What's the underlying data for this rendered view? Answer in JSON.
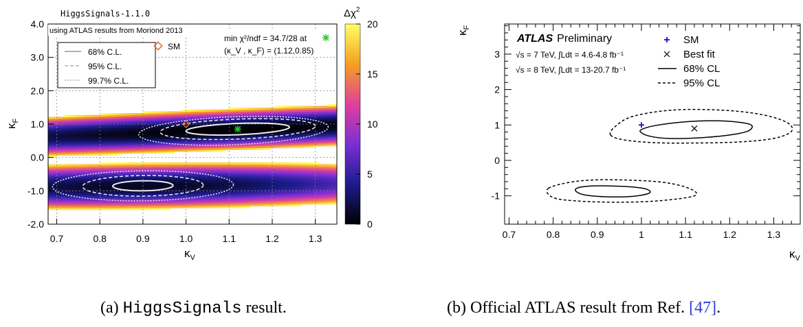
{
  "figure": {
    "caption_a": {
      "label": "(a)",
      "code": "HiggsSignals",
      "rest": "result."
    },
    "caption_b": {
      "prefix": "(b) Official ATLAS result from Ref.",
      "ref": "[47]",
      "suffix": "."
    }
  },
  "chart_data": [
    {
      "id": "a",
      "type": "heatmap",
      "tag": "HiggsSignals-1.1.0",
      "note": "using ATLAS results from Moriond 2013",
      "fit_text_1": "min χ²/ndf =  34.7/28 at",
      "fit_text_2": "(κ_V , κ_F) = (1.12,0.85)",
      "xlabel": "κ_V",
      "ylabel": "κ_F",
      "zlabel": "Δχ²",
      "xlim": [
        0.68,
        1.35
      ],
      "ylim": [
        -2.0,
        4.0
      ],
      "zlim": [
        0,
        20
      ],
      "xticks": [
        "0.7",
        "0.8",
        "0.9",
        "1.0",
        "1.1",
        "1.2",
        "1.3"
      ],
      "yticks": [
        "-2.0",
        "-1.0",
        "0.0",
        "1.0",
        "2.0",
        "3.0",
        "4.0"
      ],
      "zticks": [
        "0",
        "5",
        "10",
        "15",
        "20"
      ],
      "grid": true,
      "legend": [
        "68% C.L.",
        "95% C.L.",
        "99.7% C.L."
      ],
      "sm_label": "SM",
      "sm_point": {
        "x": 1.0,
        "y": 1.0
      },
      "best_fit": {
        "x": 1.12,
        "y": 0.85
      },
      "colors": {
        "sm": "#e06a2a",
        "best": "#22cc22",
        "contour": "#eeeeee"
      },
      "minima": [
        {
          "x": 1.12,
          "y": 0.85,
          "sx": 0.3,
          "sy": 0.14,
          "tilt": 0.5,
          "offset": 0
        },
        {
          "x": 0.9,
          "y": -0.85,
          "sx": 0.2,
          "sy": 0.16,
          "tilt": 0.15,
          "offset": 1.0
        }
      ],
      "contours": [
        {
          "cl": "68%",
          "regions": [
            {
              "cx": 1.12,
              "cy": 0.85,
              "rx": 0.12,
              "ry": 0.17,
              "tilt": 0.5
            },
            {
              "cx": 0.9,
              "cy": -0.85,
              "rx": 0.07,
              "ry": 0.15,
              "tilt": 0.15
            }
          ]
        },
        {
          "cl": "95%",
          "regions": [
            {
              "cx": 1.12,
              "cy": 0.85,
              "rx": 0.18,
              "ry": 0.3,
              "tilt": 0.5
            },
            {
              "cx": 0.9,
              "cy": -0.85,
              "rx": 0.14,
              "ry": 0.31,
              "tilt": 0.15
            }
          ]
        },
        {
          "cl": "99.7%",
          "regions": [
            {
              "cx": 1.11,
              "cy": 0.8,
              "rx": 0.22,
              "ry": 0.42,
              "tilt": 0.5
            },
            {
              "cx": 0.9,
              "cy": -0.85,
              "rx": 0.21,
              "ry": 0.45,
              "tilt": 0.15
            }
          ]
        }
      ]
    },
    {
      "id": "b",
      "type": "scatter",
      "brand": "ATLAS",
      "brand_suffix": "Preliminary",
      "energy_line_1": "√s = 7 TeV, ∫Ldt = 4.6-4.8 fb⁻¹",
      "energy_line_2": "√s = 8 TeV, ∫Ldt = 13-20.7 fb⁻¹",
      "xlabel": "κ_V",
      "ylabel": "κ_F",
      "xlim": [
        0.69,
        1.36
      ],
      "ylim": [
        -1.8,
        3.85
      ],
      "xticks": [
        "0.7",
        "0.8",
        "0.9",
        "1",
        "1.1",
        "1.2",
        "1.3"
      ],
      "yticks": [
        "-1",
        "0",
        "1",
        "2",
        "3"
      ],
      "grid": false,
      "legend": [
        "SM",
        "Best fit",
        "68% CL",
        "95% CL"
      ],
      "sm_point": {
        "x": 1.0,
        "y": 1.0
      },
      "best_fit": {
        "x": 1.12,
        "y": 0.9
      },
      "colors": {
        "sm": "#2222cc"
      },
      "contours": [
        {
          "cl": "68%",
          "regions": [
            {
              "points": [
                [
                  1.0,
                  0.78
                ],
                [
                  1.02,
                  0.68
                ],
                [
                  1.06,
                  0.62
                ],
                [
                  1.12,
                  0.63
                ],
                [
                  1.19,
                  0.7
                ],
                [
                  1.24,
                  0.82
                ],
                [
                  1.25,
                  0.99
                ],
                [
                  1.22,
                  1.08
                ],
                [
                  1.16,
                  1.12
                ],
                [
                  1.09,
                  1.08
                ],
                [
                  1.03,
                  0.98
                ],
                [
                  1.0,
                  0.87
                ]
              ]
            },
            {
              "points": [
                [
                  0.85,
                  -0.83
                ],
                [
                  0.87,
                  -0.97
                ],
                [
                  0.93,
                  -1.03
                ],
                [
                  0.99,
                  -1.0
                ],
                [
                  1.02,
                  -0.9
                ],
                [
                  1.0,
                  -0.78
                ],
                [
                  0.93,
                  -0.72
                ],
                [
                  0.87,
                  -0.74
                ]
              ]
            }
          ]
        },
        {
          "cl": "95%",
          "regions": [
            {
              "points": [
                [
                  0.93,
                  0.72
                ],
                [
                  0.96,
                  0.58
                ],
                [
                  1.03,
                  0.5
                ],
                [
                  1.12,
                  0.49
                ],
                [
                  1.22,
                  0.52
                ],
                [
                  1.3,
                  0.62
                ],
                [
                  1.34,
                  0.82
                ],
                [
                  1.33,
                  1.07
                ],
                [
                  1.27,
                  1.3
                ],
                [
                  1.18,
                  1.42
                ],
                [
                  1.07,
                  1.42
                ],
                [
                  0.98,
                  1.24
                ],
                [
                  0.94,
                  0.95
                ]
              ]
            },
            {
              "points": [
                [
                  0.79,
                  -0.78
                ],
                [
                  0.8,
                  -1.05
                ],
                [
                  0.86,
                  -1.15
                ],
                [
                  0.95,
                  -1.18
                ],
                [
                  1.04,
                  -1.14
                ],
                [
                  1.12,
                  -1.0
                ],
                [
                  1.11,
                  -0.8
                ],
                [
                  1.05,
                  -0.62
                ],
                [
                  0.95,
                  -0.55
                ],
                [
                  0.86,
                  -0.58
                ]
              ]
            }
          ]
        }
      ]
    }
  ]
}
